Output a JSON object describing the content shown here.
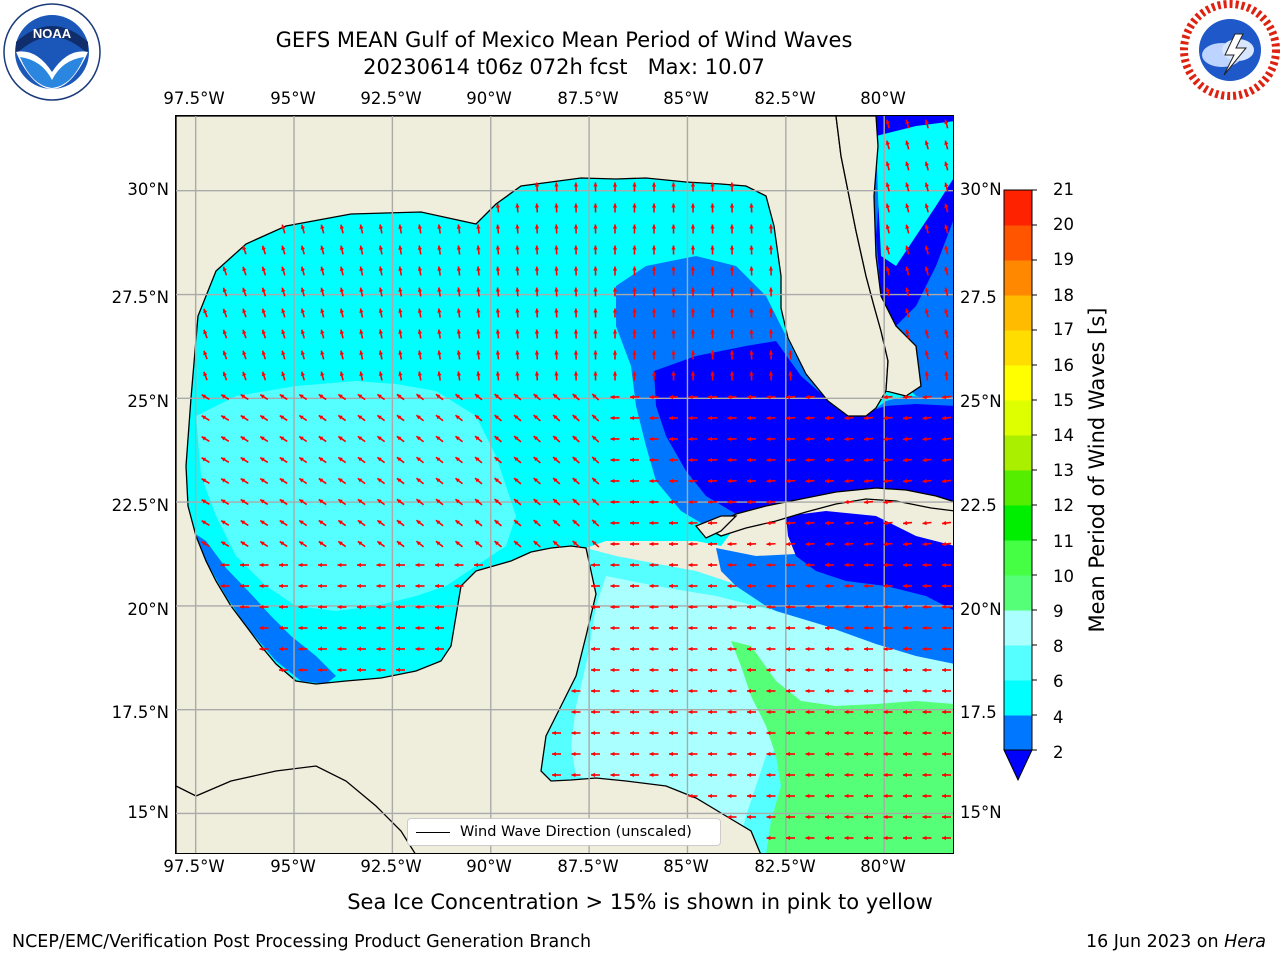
{
  "title": {
    "line1": "GEFS MEAN Gulf of Mexico Mean Period of Wind Waves",
    "line2": "20230614 t06z 072h fcst   Max: 10.07"
  },
  "logos": {
    "left": "noaa-logo",
    "right": "national-weather-service-logo"
  },
  "map": {
    "lon_labels": [
      "97.5°W",
      "95°W",
      "92.5°W",
      "90°W",
      "87.5°W",
      "85°W",
      "82.5°W",
      "80°W"
    ],
    "lat_labels": [
      "30°N",
      "27.5°N",
      "25°N",
      "22.5°N",
      "20°N",
      "17.5°N",
      "15°N"
    ],
    "lat_labels_right": [
      "30°N",
      "27.5",
      "25°N",
      "22.5",
      "20°N",
      "17.5",
      "15°N"
    ],
    "extent": {
      "lon": [
        -98.0,
        -78.2
      ],
      "lat": [
        14.0,
        31.8
      ]
    },
    "grid": true,
    "legend_label": "Wind Wave Direction (unscaled)",
    "arrow_color": "#ff0000",
    "land_color": "#efeddc"
  },
  "colorbar": {
    "label": "Mean Period of Wind Waves [s]",
    "ticks": [
      "21",
      "20",
      "19",
      "18",
      "17",
      "16",
      "15",
      "14",
      "13",
      "12",
      "11",
      "10",
      "9",
      "8",
      "6",
      "4",
      "2"
    ],
    "levels": [
      2,
      4,
      6,
      8,
      9,
      10,
      11,
      12,
      13,
      14,
      15,
      16,
      17,
      18,
      19,
      20,
      21
    ],
    "colors": [
      "#0000ff",
      "#0077ff",
      "#00ffff",
      "#55ffff",
      "#aaffff",
      "#55ff77",
      "#44ff44",
      "#00ee00",
      "#55ee00",
      "#aaee00",
      "#ddff00",
      "#ffff00",
      "#ffdd00",
      "#ffbb00",
      "#ff8800",
      "#ff5500",
      "#ff2200",
      "#ff0000"
    ]
  },
  "notes": {
    "ice": "Sea Ice Concentration > 15% is shown in pink to yellow"
  },
  "footer": {
    "left": "NCEP/EMC/Verification Post Processing Product Generation Branch",
    "date": "16 Jun 2023 on ",
    "machine": "Hera"
  }
}
